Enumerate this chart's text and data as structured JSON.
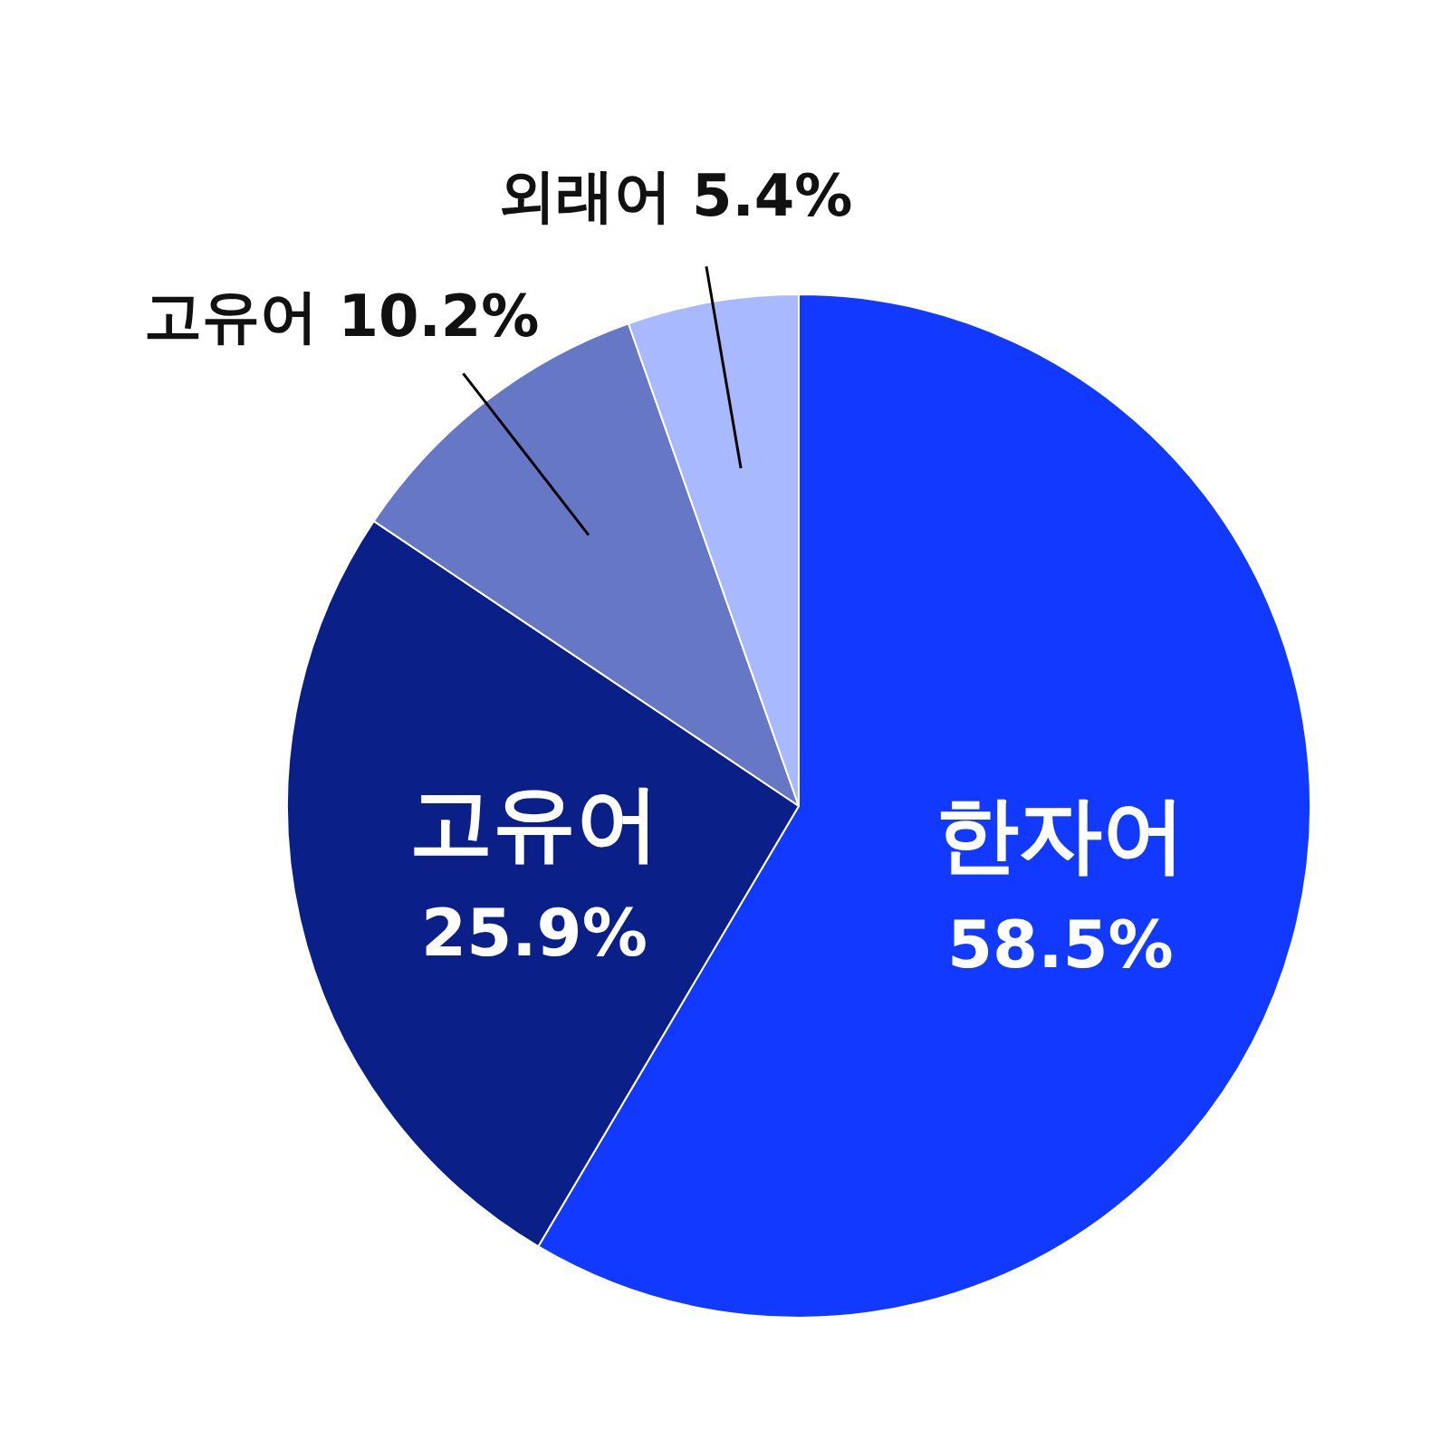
{
  "chart_data": {
    "type": "pie",
    "categories": [
      "한자어",
      "고유어",
      "고유어",
      "외래어"
    ],
    "values": [
      58.5,
      25.9,
      10.2,
      5.4
    ],
    "colors": [
      "#1139ff",
      "#0a2088",
      "#6677c6",
      "#a9b9ff"
    ],
    "value_labels": [
      "58.5%",
      "25.9%",
      "10.2%",
      "5.4%"
    ]
  }
}
